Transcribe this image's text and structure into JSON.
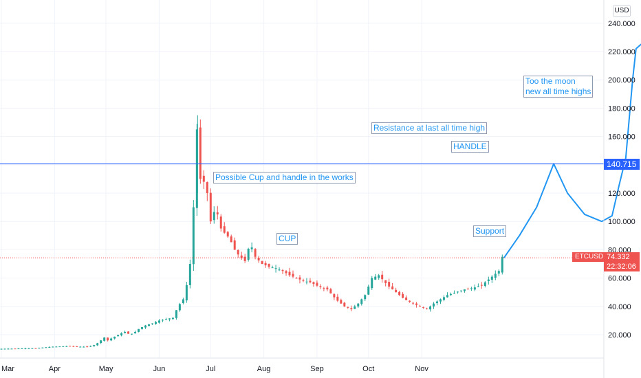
{
  "chart_data": {
    "type": "candlestick",
    "symbol": "ETCUSD",
    "currency": "USD",
    "y_range": [
      0,
      250
    ],
    "y_ticks": [
      "240.000",
      "220.000",
      "200.000",
      "180.000",
      "160.000",
      "140.000",
      "120.000",
      "100.000",
      "80.000",
      "60.000",
      "40.000",
      "20.000"
    ],
    "y_tick_values": [
      240,
      220,
      200,
      180,
      160,
      140,
      120,
      100,
      80,
      60,
      40,
      20
    ],
    "x_ticks": [
      "Mar",
      "Apr",
      "May",
      "Jun",
      "Jul",
      "Aug",
      "Sep",
      "Oct",
      "Nov"
    ],
    "last_price": "74.332",
    "countdown": "22:32:06",
    "resistance": {
      "value": 140.715,
      "label": "140.715"
    },
    "price_path": [
      [
        0,
        10
      ],
      [
        20,
        10.5
      ],
      [
        30,
        11.5
      ],
      [
        40,
        12
      ],
      [
        45,
        11.5
      ],
      [
        50,
        11.5
      ],
      [
        52,
        12
      ],
      [
        55,
        13
      ],
      [
        60,
        18
      ],
      [
        62,
        16
      ],
      [
        65,
        18
      ],
      [
        70,
        21
      ],
      [
        72,
        22
      ],
      [
        75,
        20
      ],
      [
        78,
        22
      ],
      [
        80,
        24
      ],
      [
        83,
        26
      ],
      [
        85,
        27
      ],
      [
        88,
        28
      ],
      [
        92,
        30
      ],
      [
        96,
        31
      ],
      [
        100,
        32
      ],
      [
        103,
        40
      ],
      [
        106,
        45
      ],
      [
        108,
        55
      ],
      [
        110,
        70
      ],
      [
        112,
        110
      ],
      [
        114,
        165
      ],
      [
        116,
        130
      ],
      [
        118,
        128
      ],
      [
        120,
        120
      ],
      [
        122,
        100
      ],
      [
        125,
        110
      ],
      [
        128,
        95
      ],
      [
        130,
        92
      ],
      [
        133,
        88
      ],
      [
        136,
        80
      ],
      [
        139,
        75
      ],
      [
        142,
        72
      ],
      [
        145,
        85
      ],
      [
        148,
        75
      ],
      [
        152,
        70
      ],
      [
        156,
        68
      ],
      [
        160,
        67
      ],
      [
        164,
        65
      ],
      [
        168,
        62
      ],
      [
        172,
        60
      ],
      [
        176,
        58
      ],
      [
        180,
        57
      ],
      [
        185,
        54
      ],
      [
        190,
        52
      ],
      [
        195,
        45
      ],
      [
        200,
        40
      ],
      [
        204,
        38
      ],
      [
        208,
        42
      ],
      [
        212,
        48
      ],
      [
        216,
        60
      ],
      [
        220,
        62
      ],
      [
        225,
        55
      ],
      [
        230,
        50
      ],
      [
        235,
        45
      ],
      [
        240,
        42
      ],
      [
        244,
        40
      ],
      [
        248,
        38
      ],
      [
        252,
        42
      ],
      [
        256,
        45
      ],
      [
        260,
        48
      ],
      [
        265,
        50
      ],
      [
        270,
        52
      ],
      [
        275,
        53
      ],
      [
        280,
        55
      ],
      [
        285,
        60
      ],
      [
        290,
        65
      ],
      [
        292,
        75
      ],
      [
        293,
        74.332
      ]
    ],
    "projection": [
      [
        293,
        74.332
      ],
      [
        302,
        90
      ],
      [
        312,
        110
      ],
      [
        322,
        140.715
      ],
      [
        330,
        120
      ],
      [
        340,
        105
      ],
      [
        350,
        100
      ],
      [
        356,
        104
      ],
      [
        360,
        125
      ],
      [
        364,
        145
      ],
      [
        368,
        200
      ],
      [
        370,
        222
      ],
      [
        384,
        237
      ]
    ],
    "annotations": {
      "cup_handle": "Possible Cup and handle in the works",
      "cup": "CUP",
      "resistance_note": "Resistance at last all time high",
      "handle": "HANDLE",
      "support": "Support",
      "moon": "Too the moon\nnew all time highs"
    }
  }
}
